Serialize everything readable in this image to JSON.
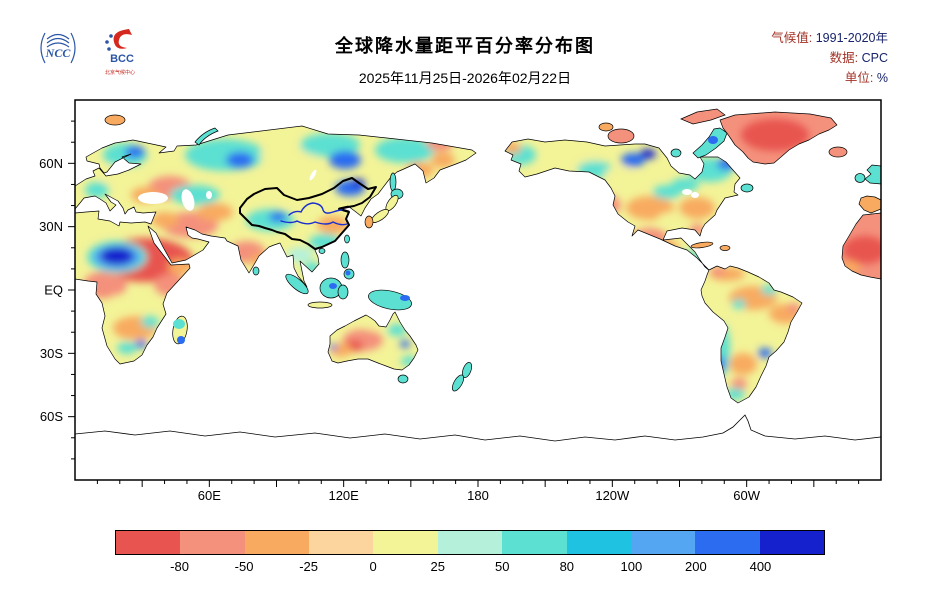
{
  "header": {
    "title": "全球降水量距平百分率分布图",
    "date_range": "2025年11月25日-2026年02月22日",
    "meta": [
      {
        "label": "气候值:",
        "value": "1991-2020年"
      },
      {
        "label": "数据:",
        "value": "CPC"
      },
      {
        "label": "单位:",
        "value": "%"
      }
    ],
    "logos": [
      {
        "name": "ncc-logo",
        "text": "NCC"
      },
      {
        "name": "bcc-logo",
        "text": "BCC",
        "caption": "北京气候中心"
      }
    ]
  },
  "map": {
    "lat_labels": [
      "60N",
      "30N",
      "EQ",
      "30S",
      "60S"
    ],
    "lon_labels": [
      "60E",
      "120E",
      "180",
      "120W",
      "60W"
    ]
  },
  "colorbar": {
    "tick_labels": [
      "-80",
      "-50",
      "-25",
      "0",
      "25",
      "50",
      "80",
      "100",
      "200",
      "400"
    ],
    "colors": [
      "#e85450",
      "#f4917c",
      "#f8ab60",
      "#fcd49e",
      "#f3f398",
      "#b5f1da",
      "#5ce0d2",
      "#1fc2e0",
      "#55a6f2",
      "#2c6cf0",
      "#1421cd"
    ]
  }
}
